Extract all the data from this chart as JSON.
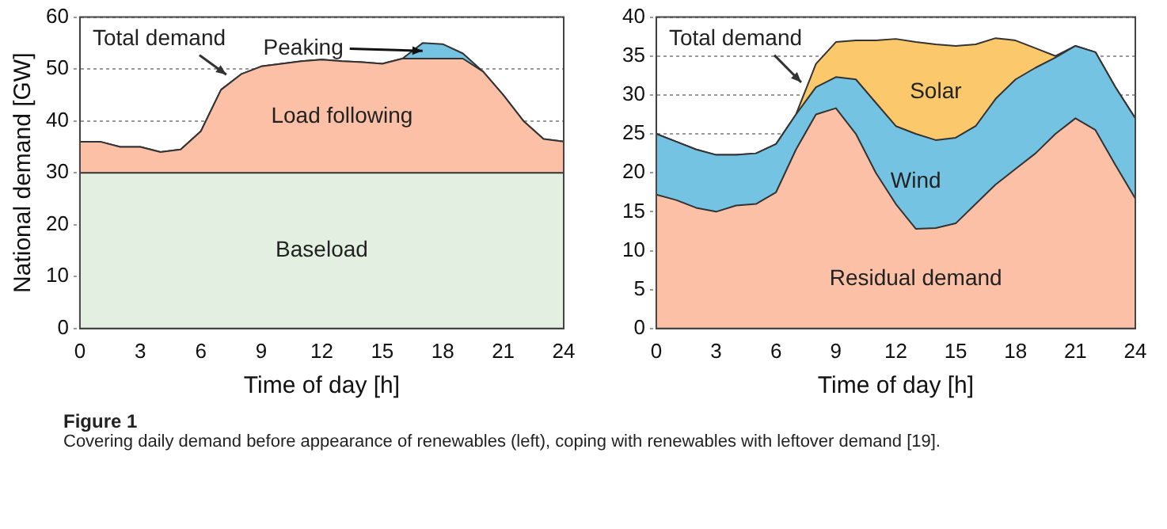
{
  "chart_data": [
    {
      "type": "area",
      "stacked": true,
      "xlabel": "Time of day [h]",
      "ylabel": "National demand [GW]",
      "x": [
        0,
        1,
        2,
        3,
        4,
        5,
        6,
        7,
        8,
        9,
        10,
        11,
        12,
        13,
        14,
        15,
        16,
        17,
        18,
        19,
        20,
        21,
        22,
        23,
        24
      ],
      "xlim": [
        0,
        24
      ],
      "xticks": [
        0,
        3,
        6,
        9,
        12,
        15,
        18,
        21,
        24
      ],
      "ylim": [
        0,
        60
      ],
      "yticks": [
        0,
        10,
        20,
        30,
        40,
        50,
        60
      ],
      "grid": "y",
      "legend": false,
      "annotations": [
        "Figure 1",
        "Covering daily demand before appearance of renewables (left), coping with renewables with leftover demand [19].",
        {
          "text": "Total demand",
          "x": 7.5,
          "y": 48
        }
      ],
      "series": [
        {
          "name": "Baseload",
          "color": "#e3f0e1",
          "values": [
            30,
            30,
            30,
            30,
            30,
            30,
            30,
            30,
            30,
            30,
            30,
            30,
            30,
            30,
            30,
            30,
            30,
            30,
            30,
            30,
            30,
            30,
            30,
            30,
            30
          ]
        },
        {
          "name": "Load following",
          "color": "#fbc0a6",
          "values": [
            6,
            6,
            5,
            5,
            4,
            4.5,
            8,
            16,
            19,
            20.5,
            21,
            21.5,
            21.8,
            21.5,
            21.3,
            21,
            22,
            22,
            22,
            22,
            19.5,
            15,
            10,
            6.5,
            6
          ]
        },
        {
          "name": "Peaking",
          "color": "#74c3e3",
          "values": [
            0,
            0,
            0,
            0,
            0,
            0,
            0,
            0,
            0,
            0,
            0,
            0,
            0,
            0,
            0,
            0,
            0,
            3,
            2.8,
            1,
            0,
            0,
            0,
            0,
            0
          ]
        }
      ]
    },
    {
      "type": "area",
      "stacked": true,
      "xlabel": "Time of day [h]",
      "x": [
        0,
        1,
        2,
        3,
        4,
        5,
        6,
        7,
        8,
        9,
        10,
        11,
        12,
        13,
        14,
        15,
        16,
        17,
        18,
        19,
        20,
        21,
        22,
        23,
        24
      ],
      "xlim": [
        0,
        24
      ],
      "xticks": [
        0,
        3,
        6,
        9,
        12,
        15,
        18,
        21,
        24
      ],
      "ylim": [
        0,
        40
      ],
      "yticks": [
        0,
        5,
        10,
        15,
        20,
        25,
        30,
        35,
        40
      ],
      "grid": "y",
      "legend": false,
      "annotations": [
        {
          "text": "Total demand",
          "x": 7.5,
          "y": 31
        }
      ],
      "series": [
        {
          "name": "Residual demand",
          "color": "#fbc0a6",
          "values": [
            17.2,
            16.5,
            15.5,
            15,
            15.8,
            16,
            17.5,
            23,
            27.5,
            28.3,
            25,
            20,
            16,
            12.8,
            12.9,
            13.5,
            16,
            18.5,
            20.5,
            22.5,
            25,
            27,
            25.5,
            21,
            16.7
          ]
        },
        {
          "name": "Wind",
          "color": "#74c3e3",
          "values": [
            7.8,
            7.5,
            7.5,
            7.3,
            6.5,
            6.5,
            6.2,
            4.5,
            3.5,
            4,
            7,
            9,
            10,
            12.2,
            11.3,
            11,
            10,
            11,
            11.5,
            11,
            9.8,
            9.3,
            10,
            10,
            10.3
          ]
        },
        {
          "name": "Solar",
          "color": "#fbc96b",
          "values": [
            0,
            0,
            0,
            0,
            0,
            0,
            0,
            0,
            3,
            4.5,
            5,
            8,
            11.2,
            11.8,
            12.3,
            11.8,
            10.5,
            7.8,
            5,
            2.5,
            0.2,
            0,
            0,
            0,
            0
          ]
        }
      ]
    }
  ]
}
